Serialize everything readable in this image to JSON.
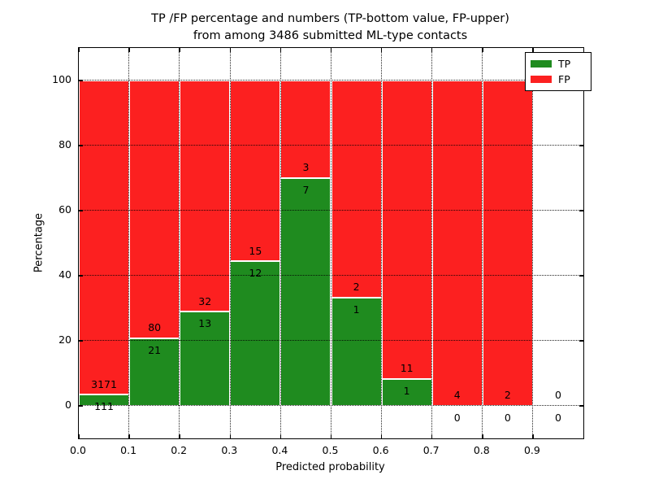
{
  "chart_data": {
    "type": "bar",
    "stacked": true,
    "unit": "percent",
    "title_line1": "TP /FP percentage and numbers (TP-bottom value, FP-upper)",
    "title_line2": "from among 3486 submitted ML-type contacts",
    "xlabel": "Predicted probability",
    "ylabel": "Percentage",
    "xlim": [
      0.0,
      1.0
    ],
    "ylim": [
      -10,
      110
    ],
    "xtick_labels": [
      "0.0",
      "0.1",
      "0.2",
      "0.3",
      "0.4",
      "0.5",
      "0.6",
      "0.7",
      "0.8",
      "0.9"
    ],
    "ytick_values": [
      0,
      20,
      40,
      60,
      80,
      100
    ],
    "grid": "dotted",
    "bin_width": 0.1,
    "categories": [
      "0.0-0.1",
      "0.1-0.2",
      "0.2-0.3",
      "0.3-0.4",
      "0.4-0.5",
      "0.5-0.6",
      "0.6-0.7",
      "0.7-0.8",
      "0.8-0.9",
      "0.9-1.0"
    ],
    "series": [
      {
        "name": "TP",
        "color": "#1f8b1f",
        "counts": [
          111,
          21,
          13,
          12,
          7,
          1,
          1,
          0,
          0,
          0
        ]
      },
      {
        "name": "FP",
        "color": "#fc2020",
        "counts": [
          3171,
          80,
          32,
          15,
          3,
          2,
          11,
          4,
          2,
          0
        ]
      }
    ],
    "tp_percentages": [
      3.38,
      20.79,
      28.89,
      44.44,
      70.0,
      33.33,
      8.33,
      0.0,
      0.0,
      null
    ],
    "fp_percentages": [
      96.62,
      79.21,
      71.11,
      55.56,
      30.0,
      66.67,
      91.67,
      100.0,
      100.0,
      null
    ],
    "legend": {
      "position": "upper right",
      "entries": [
        {
          "label": "TP",
          "color": "#1f8b1f"
        },
        {
          "label": "FP",
          "color": "#fc2020"
        }
      ]
    }
  }
}
